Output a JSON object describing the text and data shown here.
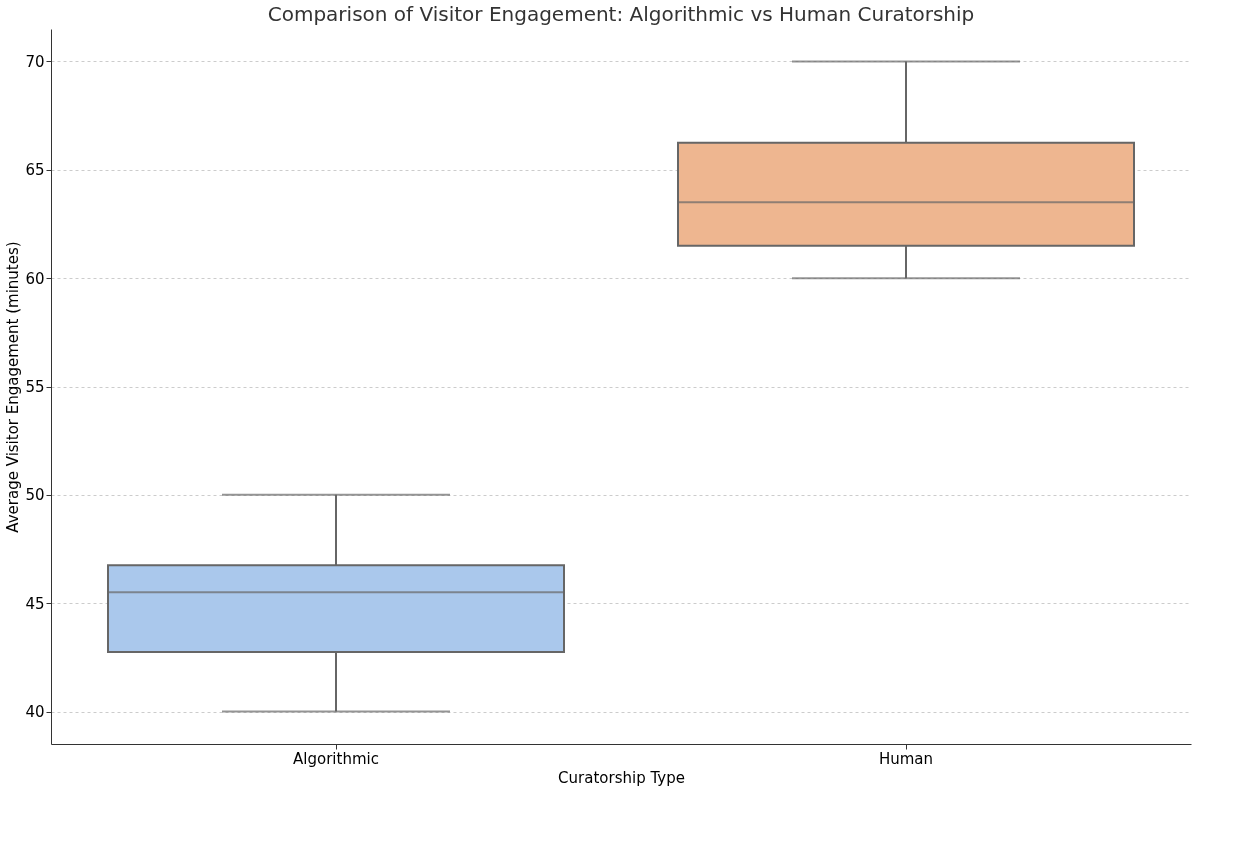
{
  "chart_data": {
    "type": "box",
    "title": "Comparison of Visitor Engagement: Algorithmic vs Human Curatorship",
    "xlabel": "Curatorship Type",
    "ylabel": "Average Visitor Engagement (minutes)",
    "categories": [
      "Algorithmic",
      "Human"
    ],
    "boxes": [
      {
        "low": 40,
        "q1": 42.75,
        "median": 45.5,
        "q3": 46.75,
        "high": 50
      },
      {
        "low": 60,
        "q1": 61.5,
        "median": 63.5,
        "q3": 66.25,
        "high": 70
      }
    ],
    "colors": [
      "#aac8ec",
      "#eeb690"
    ],
    "ylim": [
      38.5,
      71.5
    ],
    "yticks": [
      40,
      45,
      50,
      55,
      60,
      65,
      70
    ],
    "grid": "y"
  }
}
